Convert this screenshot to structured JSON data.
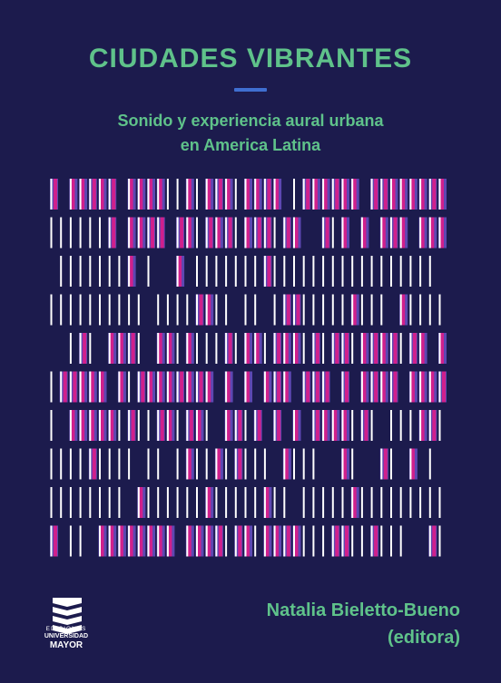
{
  "book": {
    "title": "CIUDADES VIBRANTES",
    "subtitle_line1": "Sonido y experiencia aural urbana",
    "subtitle_line2": "en America Latina",
    "author": "Natalia Bieletto-Bueno",
    "author_role": "(editora)"
  },
  "publisher": {
    "line1": "EDICIONES",
    "line2": "UNIVERSIDAD",
    "line3": "MAYOR"
  },
  "colors": {
    "background": "#1c1b4d",
    "title_green": "#5fc28a",
    "accent_blue": "#3f6fd1",
    "bar_magenta": "#d0208c",
    "bar_violet": "#6a4fc4",
    "bar_white": "#ffffff"
  },
  "icons": {
    "pattern": "vertical-bars-pattern",
    "logo": "stacked-chevrons-logo"
  }
}
